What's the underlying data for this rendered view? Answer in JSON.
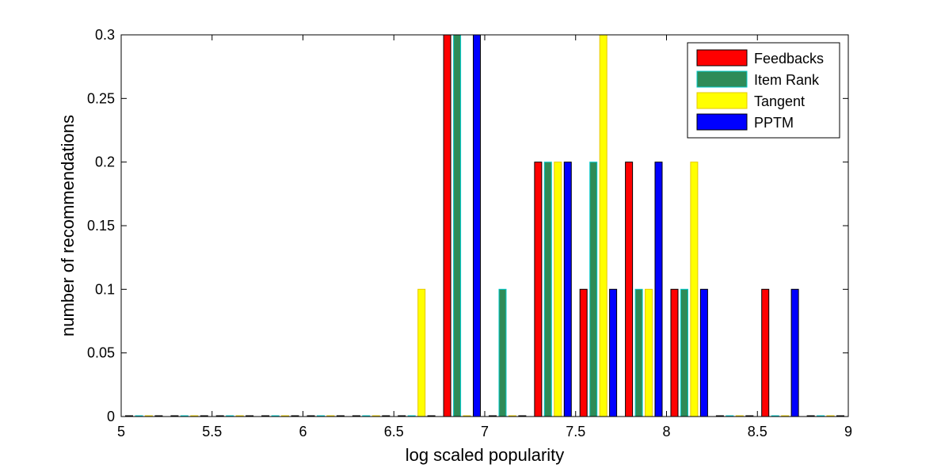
{
  "chart_data": {
    "type": "bar",
    "xlabel": "log scaled popularity",
    "ylabel": "number of recommendations",
    "xlim": [
      5,
      9
    ],
    "ylim": [
      0,
      0.3
    ],
    "xticks": [
      "5",
      "5.5",
      "6",
      "6.5",
      "7",
      "7.5",
      "8",
      "8.5",
      "9"
    ],
    "yticks": [
      "0",
      "0.05",
      "0.1",
      "0.15",
      "0.2",
      "0.25",
      "0.3"
    ],
    "bin_centers": [
      5.125,
      5.375,
      5.625,
      5.875,
      6.125,
      6.375,
      6.625,
      6.875,
      7.125,
      7.375,
      7.625,
      7.875,
      8.125,
      8.375,
      8.625,
      8.875
    ],
    "series": [
      {
        "name": "Feedbacks",
        "color": "#ff0000",
        "edge": "#000000",
        "values": [
          0,
          0,
          0,
          0,
          0,
          0,
          0,
          0.3,
          0,
          0.2,
          0.1,
          0.2,
          0.1,
          0,
          0.1,
          0
        ]
      },
      {
        "name": "Item Rank",
        "color": "#2e8b57",
        "edge": "#00c8c8",
        "values": [
          0,
          0,
          0,
          0,
          0,
          0,
          0,
          0.3,
          0.1,
          0.2,
          0.2,
          0.1,
          0.1,
          0,
          0,
          0
        ]
      },
      {
        "name": "Tangent",
        "color": "#ffff00",
        "edge": "#e6c800",
        "values": [
          0,
          0,
          0,
          0,
          0,
          0,
          0.1,
          0,
          0,
          0.2,
          0.3,
          0.1,
          0.2,
          0,
          0,
          0
        ]
      },
      {
        "name": "PPTM",
        "color": "#0000ff",
        "edge": "#000000",
        "values": [
          0,
          0,
          0,
          0,
          0,
          0,
          0,
          0.3,
          0,
          0.2,
          0.1,
          0.2,
          0.1,
          0,
          0.1,
          0
        ]
      }
    ],
    "legend_position": "top-right",
    "grid": false
  }
}
